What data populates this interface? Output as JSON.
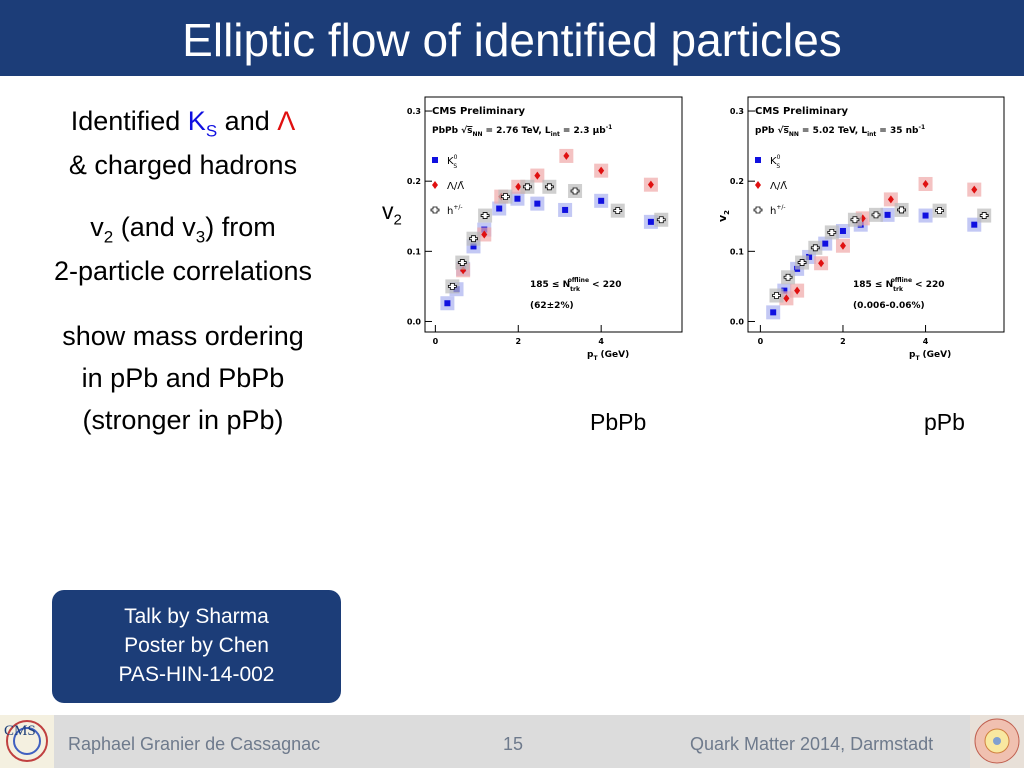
{
  "header": {
    "title": "Elliptic flow of identified particles"
  },
  "bullets": [
    {
      "lines": [
        [
          "Identified",
          "K",
          "S",
          "and",
          "Λ"
        ],
        [
          "& charged hadrons"
        ]
      ]
    },
    {
      "lines": [
        [
          "v",
          "2",
          "(and v",
          "3",
          ") from"
        ],
        [
          "2-particle correlations"
        ]
      ]
    },
    {
      "lines": [
        [
          "show mass ordering"
        ],
        [
          "in pPb and PbPb"
        ],
        [
          "(stronger in pPb)"
        ]
      ]
    }
  ],
  "side_label": {
    "text": "v",
    "sub": "2"
  },
  "captions": [
    "PbPb",
    "pPb"
  ],
  "box": {
    "lines": [
      "Talk by Sharma",
      "Poster by Chen",
      "PAS-HIN-14-002"
    ]
  },
  "footer": {
    "logo": "CMS",
    "author": "Raphael Granier de Cassagnac",
    "page": "15",
    "event": "Quark Matter 2014, Darmstadt"
  },
  "chart_data": [
    {
      "type": "scatter",
      "title": "CMS Preliminary",
      "energy": [
        "PbPb",
        "s",
        "NN",
        "= 2.76 TeV, L",
        "int",
        "= 2.3 μb",
        "-1"
      ],
      "selection": [
        "185 ≤ N",
        "trk",
        "offline",
        "< 220"
      ],
      "fraction": "(62±2%)",
      "xlabel": "p",
      "xlabel_sub": "T",
      "xlabel_unit": "(GeV)",
      "xlim": [
        -0.25,
        5.95
      ],
      "xticks": [
        0,
        2,
        4
      ],
      "ylim": [
        -0.015,
        0.32
      ],
      "yticks": [
        {
          "value": 0,
          "label": "0.0"
        },
        0.1,
        0.2,
        0.3
      ],
      "series": [
        {
          "name": "K",
          "sub": "S",
          "sup": "0",
          "color": "#1010e0",
          "x": [
            0.29,
            0.51,
            0.67,
            0.92,
            1.18,
            1.54,
            1.98,
            2.46,
            3.13,
            4.0,
            5.2
          ],
          "values": [
            0.026,
            0.046,
            0.075,
            0.107,
            0.131,
            0.161,
            0.175,
            0.168,
            0.159,
            0.172,
            0.142
          ]
        },
        {
          "name": "Λ/Λ̄",
          "color": "#e01010",
          "x": [
            0.67,
            1.18,
            1.59,
            2.0,
            2.46,
            3.16,
            4.0,
            5.2
          ],
          "values": [
            0.073,
            0.124,
            0.178,
            0.192,
            0.208,
            0.236,
            0.215,
            0.195
          ]
        },
        {
          "name": "h",
          "sup": "+/-",
          "color": "#000000",
          "x": [
            0.41,
            0.65,
            0.92,
            1.2,
            1.69,
            2.22,
            2.75,
            3.37,
            4.4,
            5.45
          ],
          "values": [
            0.05,
            0.084,
            0.118,
            0.151,
            0.178,
            0.192,
            0.192,
            0.186,
            0.158,
            0.145
          ]
        }
      ]
    },
    {
      "type": "scatter",
      "title": "CMS Preliminary",
      "energy": [
        "pPb",
        "s",
        "NN",
        "= 5.02 TeV, L",
        "int",
        "= 35 nb",
        "-1"
      ],
      "selection": [
        "185 ≤ N",
        "trk",
        "offline",
        "< 220"
      ],
      "fraction": "(0.006-0.06%)",
      "xlabel": "p",
      "xlabel_sub": "T",
      "xlabel_unit": "(GeV)",
      "ylabel": "v",
      "ylabel_sub": "2",
      "xlim": [
        -0.3,
        5.9
      ],
      "xticks": [
        0,
        2,
        4
      ],
      "ylim": [
        -0.015,
        0.32
      ],
      "yticks": [
        {
          "value": 0,
          "label": "0.0"
        },
        0.1,
        0.2,
        0.3
      ],
      "series": [
        {
          "name": "K",
          "sub": "S",
          "sup": "0",
          "color": "#1010e0",
          "x": [
            0.31,
            0.58,
            0.89,
            1.18,
            1.57,
            2.0,
            2.43,
            3.08,
            4.0,
            5.18
          ],
          "values": [
            0.013,
            0.044,
            0.075,
            0.092,
            0.111,
            0.129,
            0.138,
            0.152,
            0.151,
            0.138
          ]
        },
        {
          "name": "Λ/Λ̄",
          "color": "#e01010",
          "x": [
            0.63,
            0.89,
            1.47,
            2.0,
            2.48,
            3.16,
            4.0,
            5.18
          ],
          "values": [
            0.033,
            0.044,
            0.083,
            0.108,
            0.147,
            0.174,
            0.196,
            0.188
          ]
        },
        {
          "name": "h",
          "sup": "+/-",
          "color": "#000000",
          "x": [
            0.39,
            0.67,
            1.01,
            1.33,
            1.73,
            2.29,
            2.8,
            3.42,
            4.34,
            5.42
          ],
          "values": [
            0.037,
            0.063,
            0.084,
            0.105,
            0.127,
            0.145,
            0.152,
            0.159,
            0.158,
            0.151
          ]
        }
      ]
    }
  ]
}
